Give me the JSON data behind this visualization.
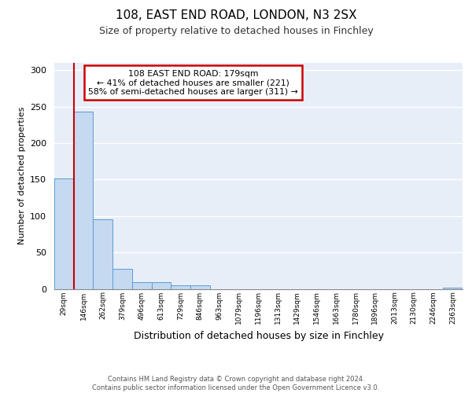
{
  "title1": "108, EAST END ROAD, LONDON, N3 2SX",
  "title2": "Size of property relative to detached houses in Finchley",
  "xlabel": "Distribution of detached houses by size in Finchley",
  "ylabel": "Number of detached properties",
  "bin_labels": [
    "29sqm",
    "146sqm",
    "262sqm",
    "379sqm",
    "496sqm",
    "613sqm",
    "729sqm",
    "846sqm",
    "963sqm",
    "1079sqm",
    "1196sqm",
    "1313sqm",
    "1429sqm",
    "1546sqm",
    "1663sqm",
    "1780sqm",
    "1896sqm",
    "2013sqm",
    "2130sqm",
    "2246sqm",
    "2363sqm"
  ],
  "bar_heights": [
    152,
    243,
    95,
    28,
    9,
    9,
    5,
    5,
    0,
    0,
    0,
    0,
    0,
    0,
    0,
    0,
    0,
    0,
    0,
    0,
    2
  ],
  "bar_color": "#c5d9f0",
  "bar_edge_color": "#5b9bd5",
  "ylim": [
    0,
    310
  ],
  "yticks": [
    0,
    50,
    100,
    150,
    200,
    250,
    300
  ],
  "property_line_x": 0.5,
  "annotation_box_text": "108 EAST END ROAD: 179sqm\n← 41% of detached houses are smaller (221)\n58% of semi-detached houses are larger (311) →",
  "annotation_box_color": "#cc0000",
  "annotation_box_fill": "#ffffff",
  "footer_text": "Contains HM Land Registry data © Crown copyright and database right 2024.\nContains public sector information licensed under the Open Government Licence v3.0.",
  "plot_bg_color": "#e8eef8",
  "fig_bg_color": "#ffffff"
}
